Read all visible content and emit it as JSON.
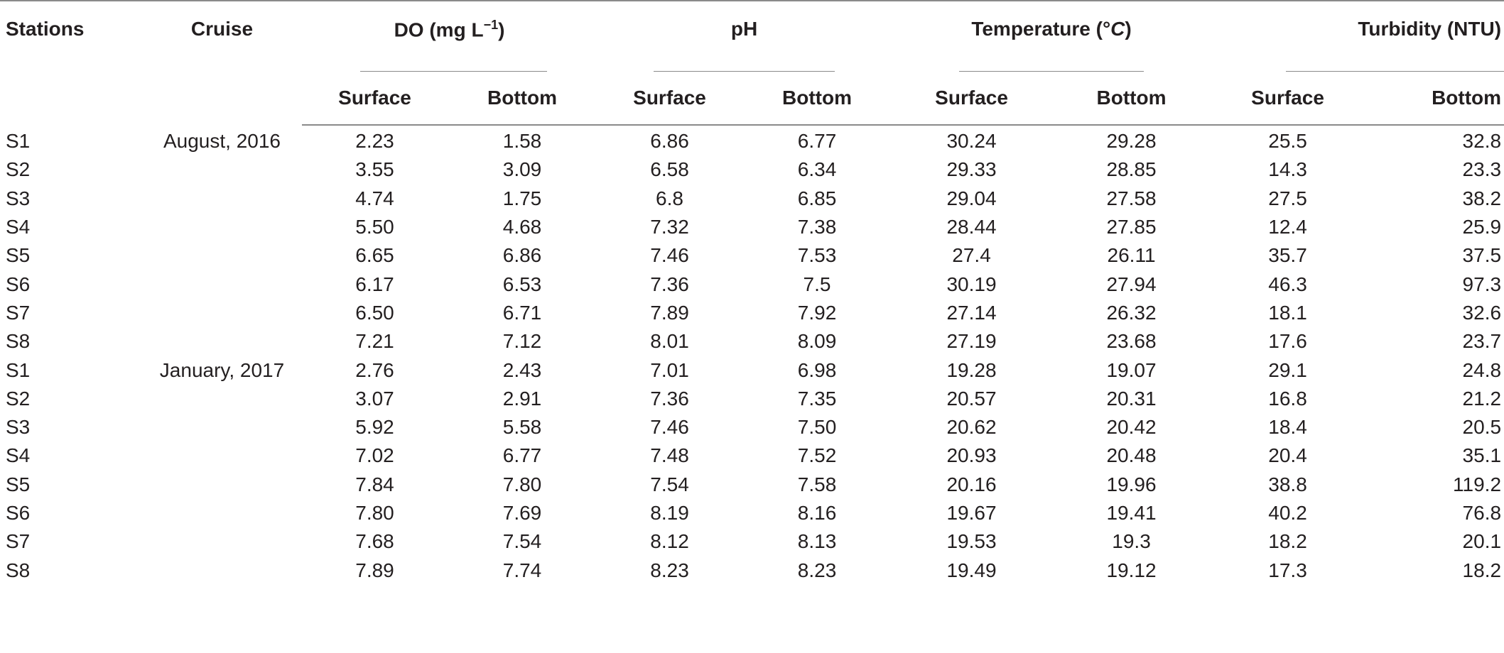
{
  "headers": {
    "stations": "Stations",
    "cruise": "Cruise",
    "do_prefix": "DO (mg L",
    "do_sup": "−1",
    "do_suffix": ")",
    "ph": "pH",
    "temperature_prefix": "Temperature (°",
    "temperature_unit": "C",
    "temperature_suffix": ")",
    "turbidity": "Turbidity (NTU)",
    "surface": "Surface",
    "bottom": "Bottom"
  },
  "rows": [
    {
      "station": "S1",
      "cruise": "August, 2016",
      "values": [
        "2.23",
        "1.58",
        "6.86",
        "6.77",
        "30.24",
        "29.28",
        "25.5",
        "32.8"
      ]
    },
    {
      "station": "S2",
      "cruise": "",
      "values": [
        "3.55",
        "3.09",
        "6.58",
        "6.34",
        "29.33",
        "28.85",
        "14.3",
        "23.3"
      ]
    },
    {
      "station": "S3",
      "cruise": "",
      "values": [
        "4.74",
        "1.75",
        "6.8",
        "6.85",
        "29.04",
        "27.58",
        "27.5",
        "38.2"
      ]
    },
    {
      "station": "S4",
      "cruise": "",
      "values": [
        "5.50",
        "4.68",
        "7.32",
        "7.38",
        "28.44",
        "27.85",
        "12.4",
        "25.9"
      ]
    },
    {
      "station": "S5",
      "cruise": "",
      "values": [
        "6.65",
        "6.86",
        "7.46",
        "7.53",
        "27.4",
        "26.11",
        "35.7",
        "37.5"
      ]
    },
    {
      "station": "S6",
      "cruise": "",
      "values": [
        "6.17",
        "6.53",
        "7.36",
        "7.5",
        "30.19",
        "27.94",
        "46.3",
        "97.3"
      ]
    },
    {
      "station": "S7",
      "cruise": "",
      "values": [
        "6.50",
        "6.71",
        "7.89",
        "7.92",
        "27.14",
        "26.32",
        "18.1",
        "32.6"
      ]
    },
    {
      "station": "S8",
      "cruise": "",
      "values": [
        "7.21",
        "7.12",
        "8.01",
        "8.09",
        "27.19",
        "23.68",
        "17.6",
        "23.7"
      ]
    },
    {
      "station": "S1",
      "cruise": "January, 2017",
      "values": [
        "2.76",
        "2.43",
        "7.01",
        "6.98",
        "19.28",
        "19.07",
        "29.1",
        "24.8"
      ]
    },
    {
      "station": "S2",
      "cruise": "",
      "values": [
        "3.07",
        "2.91",
        "7.36",
        "7.35",
        "20.57",
        "20.31",
        "16.8",
        "21.2"
      ]
    },
    {
      "station": "S3",
      "cruise": "",
      "values": [
        "5.92",
        "5.58",
        "7.46",
        "7.50",
        "20.62",
        "20.42",
        "18.4",
        "20.5"
      ]
    },
    {
      "station": "S4",
      "cruise": "",
      "values": [
        "7.02",
        "6.77",
        "7.48",
        "7.52",
        "20.93",
        "20.48",
        "20.4",
        "35.1"
      ]
    },
    {
      "station": "S5",
      "cruise": "",
      "values": [
        "7.84",
        "7.80",
        "7.54",
        "7.58",
        "20.16",
        "19.96",
        "38.8",
        "119.2"
      ]
    },
    {
      "station": "S6",
      "cruise": "",
      "values": [
        "7.80",
        "7.69",
        "8.19",
        "8.16",
        "19.67",
        "19.41",
        "40.2",
        "76.8"
      ]
    },
    {
      "station": "S7",
      "cruise": "",
      "values": [
        "7.68",
        "7.54",
        "8.12",
        "8.13",
        "19.53",
        "19.3",
        "18.2",
        "20.1"
      ]
    },
    {
      "station": "S8",
      "cruise": "",
      "values": [
        "7.89",
        "7.74",
        "8.23",
        "8.23",
        "19.49",
        "19.12",
        "17.3",
        "18.2"
      ]
    }
  ]
}
